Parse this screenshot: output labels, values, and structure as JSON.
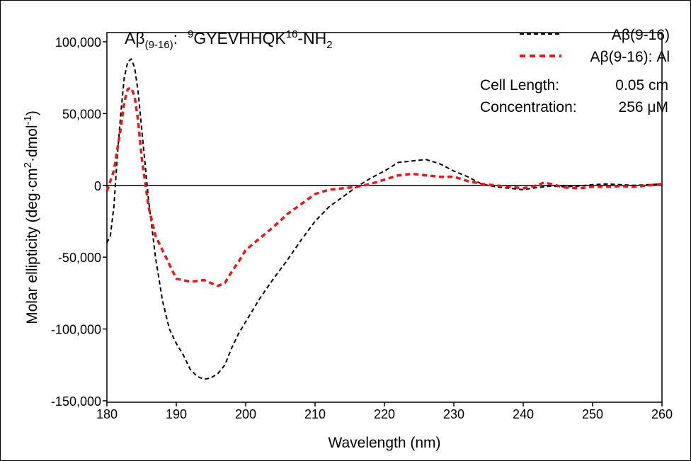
{
  "chart_data": {
    "type": "line",
    "title": {
      "prefix": "Aβ",
      "prefix_sub": "(9-16)",
      "sep": ":",
      "sup1": "9",
      "seq": "GYEVHHQK",
      "sup2": "16",
      "tail": "-NH",
      "tail_sub": "2"
    },
    "xlabel": "Wavelength (nm)",
    "ylabel": {
      "a": "Molar ellipticity (deg·cm",
      "sup1": "2",
      "b": "·dmol",
      "sup2": "-1",
      "c": ")"
    },
    "xlim": [
      180,
      260
    ],
    "ylim": [
      -150000,
      100000
    ],
    "x_ticks": [
      180,
      190,
      200,
      210,
      220,
      230,
      240,
      250,
      260
    ],
    "x_tick_labels": [
      "180",
      "190",
      "200",
      "210",
      "220",
      "230",
      "240",
      "250",
      "260"
    ],
    "y_ticks": [
      100000,
      50000,
      0,
      -50000,
      -100000,
      -150000
    ],
    "y_tick_labels": [
      "100,000",
      "50,000",
      "0",
      "-50,000",
      "-100,000",
      "-150,000"
    ],
    "zero_line": true,
    "legend_position": "top-right",
    "annotations": [
      {
        "label": "Cell Length:",
        "value": "0.05 cm"
      },
      {
        "label": "Concentration:",
        "value": "256 μM"
      }
    ],
    "series": [
      {
        "name": "Aβ(9-16)",
        "color": "#000000",
        "style": "dashed",
        "x": [
          180,
          180.5,
          181,
          181.5,
          182,
          182.5,
          183,
          183.5,
          184,
          184.5,
          185,
          185.5,
          186,
          187,
          188,
          189,
          190,
          191,
          192,
          193,
          194,
          195,
          196,
          197,
          198,
          199,
          200,
          202,
          204,
          206,
          208,
          210,
          212,
          214,
          216,
          218,
          220,
          222,
          224,
          226,
          228,
          230,
          232,
          234,
          236,
          238,
          240,
          242,
          244,
          246,
          248,
          250,
          252,
          254,
          256,
          258,
          260
        ],
        "y": [
          -40000,
          -35000,
          -15000,
          20000,
          50000,
          75000,
          86000,
          88000,
          82000,
          65000,
          40000,
          15000,
          -10000,
          -50000,
          -80000,
          -100000,
          -110000,
          -118000,
          -128000,
          -133000,
          -135000,
          -134000,
          -131000,
          -125000,
          -113000,
          -103000,
          -95000,
          -79000,
          -65000,
          -52000,
          -38000,
          -25000,
          -15000,
          -8000,
          -1000,
          5000,
          10000,
          16000,
          17000,
          18000,
          15000,
          10000,
          6000,
          1000,
          -1000,
          -2000,
          -3000,
          -1500,
          -500,
          -1000,
          -500,
          500,
          1000,
          500,
          0,
          500,
          1000
        ]
      },
      {
        "name": "Aβ(9-16): Al",
        "color": "#e8191b",
        "style": "dashed-bold",
        "x": [
          180,
          181,
          182,
          182.5,
          183,
          183.5,
          184,
          184.5,
          185,
          186,
          187,
          188,
          189,
          190,
          192,
          194,
          195,
          196,
          197,
          198,
          199,
          200,
          202,
          204,
          206,
          208,
          210,
          212,
          214,
          216,
          218,
          220,
          222,
          224,
          226,
          228,
          230,
          232,
          234,
          236,
          238,
          240,
          242,
          243,
          244,
          246,
          248,
          250,
          252,
          254,
          256,
          258,
          260
        ],
        "y": [
          -4000,
          10000,
          40000,
          58000,
          67000,
          68000,
          62000,
          45000,
          20000,
          -15000,
          -35000,
          -45000,
          -55000,
          -65000,
          -67000,
          -66000,
          -68000,
          -70000,
          -68000,
          -60000,
          -53000,
          -45000,
          -37000,
          -29000,
          -20000,
          -13000,
          -6000,
          -3000,
          -2000,
          -1000,
          1000,
          4000,
          7000,
          8000,
          7000,
          6000,
          6000,
          3000,
          1000,
          0,
          -1000,
          -2000,
          0,
          2000,
          1000,
          -1500,
          -2000,
          -1000,
          -1000,
          -500,
          -1000,
          0,
          1000
        ]
      }
    ]
  }
}
